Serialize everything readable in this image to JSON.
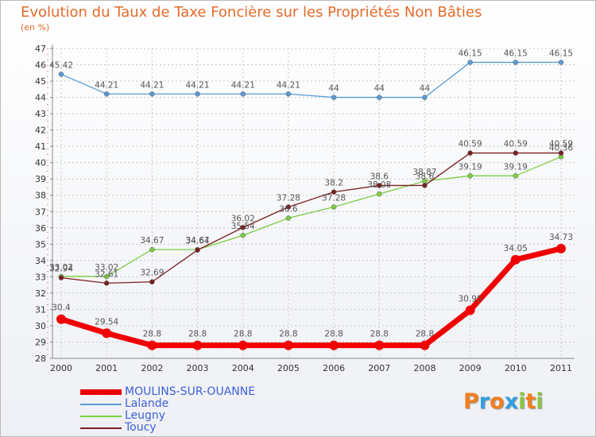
{
  "title": "Evolution du Taux de Taxe Foncière sur les Propriétés Non Bâties",
  "subtitle": "(en %)",
  "logo": {
    "letters": [
      "P",
      "r",
      "o",
      "x",
      "i",
      "t",
      "i"
    ],
    "colors": [
      "#f07f1f",
      "#2f9fe0",
      "#f07f1f",
      "#2f9fe0",
      "#8bc63f",
      "#f07f1f",
      "#8bc63f"
    ]
  },
  "chart_data": {
    "type": "line",
    "x": [
      "2000",
      "2001",
      "2002",
      "2003",
      "2004",
      "2005",
      "2006",
      "2007",
      "2008",
      "2009",
      "2010",
      "2011"
    ],
    "ylim": [
      28,
      47
    ],
    "yticks": [
      "28",
      "29",
      "30",
      "31",
      "32",
      "33",
      "34",
      "35",
      "36",
      "37",
      "38",
      "39",
      "40",
      "41",
      "42",
      "43",
      "44",
      "45",
      "46",
      "47"
    ],
    "grid": true,
    "series": [
      {
        "name": "MOULINS-SUR-OUANNE",
        "color": "#f00000",
        "values": [
          30.4,
          29.54,
          28.8,
          28.8,
          28.8,
          28.8,
          28.8,
          28.8,
          28.8,
          30.95,
          34.05,
          34.73
        ],
        "labels": [
          "30.4",
          "29.54",
          "28.8",
          "28.8",
          "28.8",
          "28.8",
          "28.8",
          "28.8",
          "28.8",
          "30.95",
          "34.05",
          "34.73"
        ]
      },
      {
        "name": "Lalande",
        "color": "#5a9bd4",
        "values": [
          45.42,
          44.21,
          44.21,
          44.21,
          44.21,
          44.21,
          44,
          44,
          44,
          46.15,
          46.15,
          46.15
        ],
        "labels": [
          "45.42",
          "44.21",
          "44.21",
          "44.21",
          "44.21",
          "44.21",
          "44",
          "44",
          "44",
          "46.15",
          "46.15",
          "46.15"
        ]
      },
      {
        "name": "Leugny",
        "color": "#7ccd40",
        "values": [
          33.02,
          33.02,
          34.67,
          34.67,
          35.54,
          36.6,
          37.28,
          38.08,
          38.87,
          39.19,
          39.19,
          40.36
        ],
        "labels": [
          "33.02",
          "33.02",
          "34.67",
          "34.67",
          "35.54",
          "36.6",
          "37.28",
          "38.08",
          "38.87",
          "39.19",
          "39.19",
          "40.36"
        ]
      },
      {
        "name": "Toucy",
        "color": "#7a1f1f",
        "values": [
          32.94,
          32.61,
          32.69,
          34.64,
          36.02,
          37.28,
          38.2,
          38.6,
          38.6,
          40.59,
          40.59,
          40.59
        ],
        "labels": [
          "32.94",
          "32.61",
          "32.69",
          "34.64",
          "36.02",
          "37.28",
          "38.2",
          "38.6",
          "38.6",
          "40.59",
          "40.59",
          "40.59"
        ]
      }
    ]
  },
  "legend": [
    {
      "label": "MOULINS-SUR-OUANNE"
    },
    {
      "label": "Lalande"
    },
    {
      "label": "Leugny"
    },
    {
      "label": "Toucy"
    }
  ]
}
